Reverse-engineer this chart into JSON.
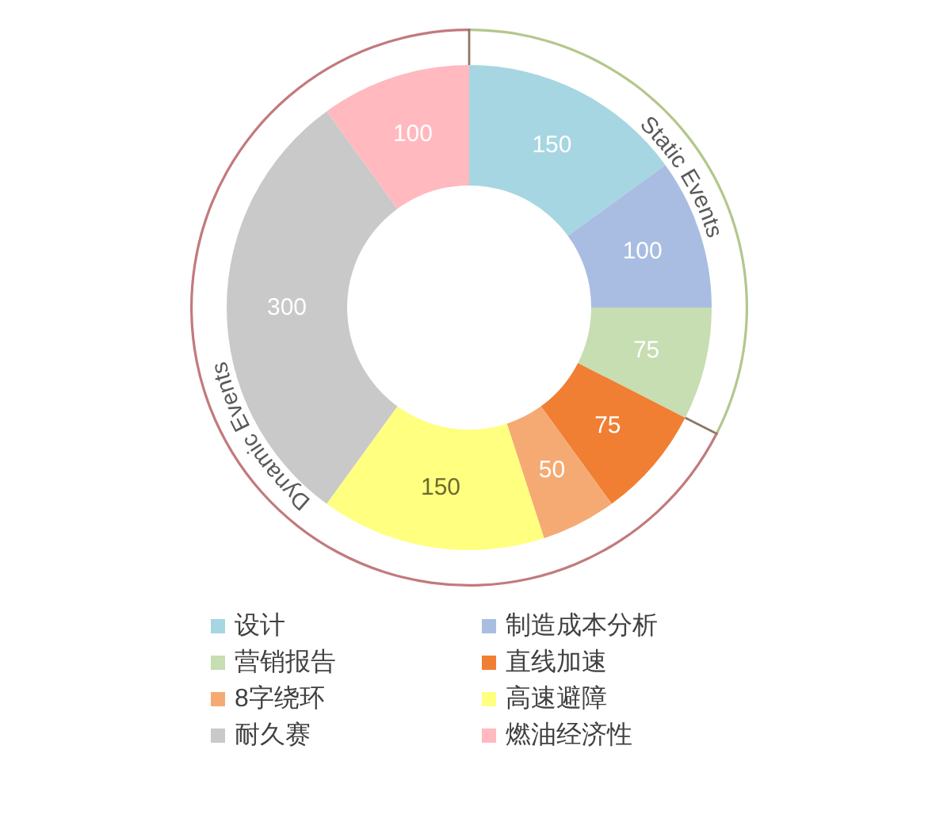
{
  "chart_data": [
    {
      "type": "donut",
      "categories": [
        "设计",
        "制造成本分析",
        "营销报告",
        "直线加速",
        "8字绕环",
        "高速避障",
        "耐久赛",
        "燃油经济性"
      ],
      "values": [
        150,
        100,
        75,
        75,
        50,
        150,
        300,
        100
      ],
      "colors": [
        "#a6d6e1",
        "#a9bde2",
        "#c7ddb2",
        "#f07f33",
        "#f5aa74",
        "#ffff80",
        "#c9c9c9",
        "#ffb9bf"
      ],
      "data_labels": true,
      "legend": "bottom"
    },
    {
      "type": "donut",
      "categories": [
        "Static Events",
        "Dynamic Events"
      ],
      "values": [
        32.5,
        67.5
      ],
      "colors": [
        "#b3c78c",
        "#c27a7d"
      ]
    }
  ]
}
